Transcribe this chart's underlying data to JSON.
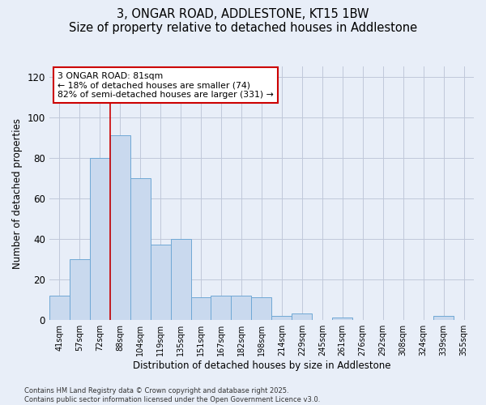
{
  "title": "3, ONGAR ROAD, ADDLESTONE, KT15 1BW",
  "subtitle": "Size of property relative to detached houses in Addlestone",
  "xlabel": "Distribution of detached houses by size in Addlestone",
  "ylabel": "Number of detached properties",
  "categories": [
    "41sqm",
    "57sqm",
    "72sqm",
    "88sqm",
    "104sqm",
    "119sqm",
    "135sqm",
    "151sqm",
    "167sqm",
    "182sqm",
    "198sqm",
    "214sqm",
    "229sqm",
    "245sqm",
    "261sqm",
    "276sqm",
    "292sqm",
    "308sqm",
    "324sqm",
    "339sqm",
    "355sqm"
  ],
  "values": [
    12,
    30,
    80,
    91,
    70,
    37,
    40,
    11,
    12,
    12,
    11,
    2,
    3,
    0,
    1,
    0,
    0,
    0,
    0,
    2,
    0
  ],
  "bar_color": "#c9d9ee",
  "bar_edge_color": "#6fa8d5",
  "background_color": "#e8eef8",
  "grid_color": "#c0c8da",
  "vline_color": "#cc0000",
  "vline_pos": 2.5,
  "annotation_text": "3 ONGAR ROAD: 81sqm\n← 18% of detached houses are smaller (74)\n82% of semi-detached houses are larger (331) →",
  "annotation_box_facecolor": "#ffffff",
  "annotation_box_edgecolor": "#cc0000",
  "ylim": [
    0,
    125
  ],
  "yticks": [
    0,
    20,
    40,
    60,
    80,
    100,
    120
  ],
  "footer1": "Contains HM Land Registry data © Crown copyright and database right 2025.",
  "footer2": "Contains public sector information licensed under the Open Government Licence v3.0."
}
